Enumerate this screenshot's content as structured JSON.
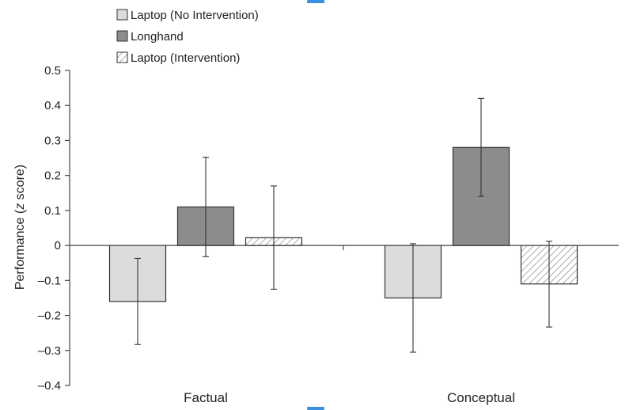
{
  "chart_data": {
    "type": "bar",
    "categories": [
      "Factual",
      "Conceptual"
    ],
    "series": [
      {
        "name": "Laptop (No Intervention)",
        "values": [
          -0.16,
          -0.15
        ],
        "err_low": [
          -0.283,
          -0.305
        ],
        "err_high": [
          -0.037,
          0.005
        ],
        "fill": "#dcdcdc",
        "pattern": "solid"
      },
      {
        "name": "Longhand",
        "values": [
          0.11,
          0.28
        ],
        "err_low": [
          -0.032,
          0.14
        ],
        "err_high": [
          0.252,
          0.42
        ],
        "fill": "#8c8c8c",
        "pattern": "solid"
      },
      {
        "name": "Laptop (Intervention)",
        "values": [
          0.022,
          -0.11
        ],
        "err_low": [
          -0.125,
          -0.233
        ],
        "err_high": [
          0.17,
          0.012
        ],
        "fill": "#ffffff",
        "pattern": "hatch"
      }
    ],
    "ylabel_prefix": "Performance (",
    "ylabel_italic": "z",
    "ylabel_suffix": " score)",
    "ylim": [
      -0.4,
      0.5
    ],
    "yticks": [
      0.5,
      0.4,
      0.3,
      0.2,
      0.1,
      0,
      -0.1,
      -0.2,
      -0.3,
      -0.4
    ],
    "ytick_labels": [
      "0.5",
      "0.4",
      "0.3",
      "0.2",
      "0.1",
      "0",
      "–0.1",
      "–0.2",
      "–0.3",
      "–0.4"
    ],
    "legend_position": "top-left",
    "grid": false,
    "colors": {
      "axis": "#444444",
      "bar_edge": "#333333",
      "hatch": "#888888",
      "accent_marker": "#3d8fe0"
    }
  }
}
